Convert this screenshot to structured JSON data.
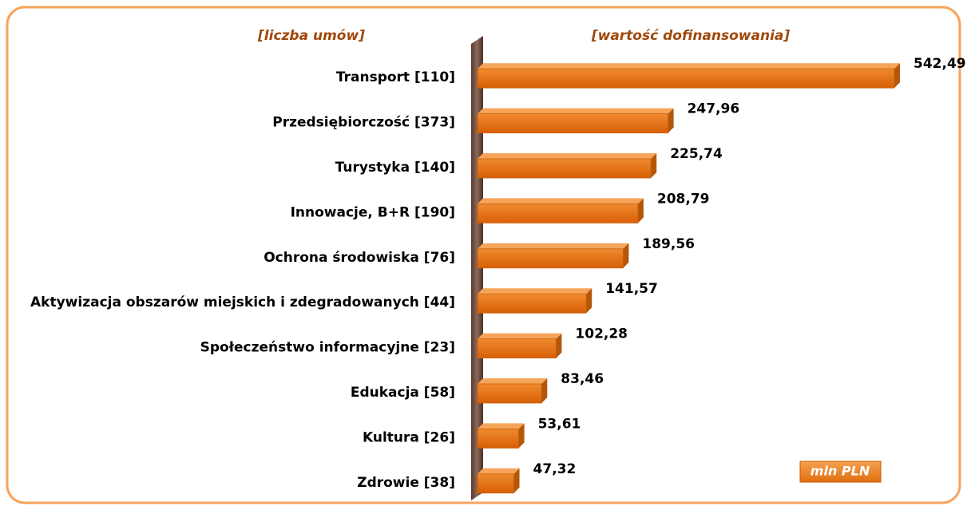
{
  "chart_data": {
    "type": "bar",
    "orientation": "horizontal",
    "left_header": "[liczba umów]",
    "right_header": "[wartość dofinansowania]",
    "unit_label": "mln PLN",
    "color": "#e46c0a",
    "categories": [
      "Transport [110]",
      "Przedsiębiorczość [373]",
      "Turystyka [140]",
      "Innowacje, B+R [190]",
      "Ochrona środowiska [76]",
      "Aktywizacja obszarów miejskich i zdegradowanych [44]",
      "Społeczeństwo informacyjne [23]",
      "Edukacja [58]",
      "Kultura [26]",
      "Zdrowie [38]"
    ],
    "values": [
      542.49,
      247.96,
      225.74,
      208.79,
      189.56,
      141.57,
      102.28,
      83.46,
      53.61,
      47.32
    ],
    "value_labels": [
      "542,49",
      "247,96",
      "225,74",
      "208,79",
      "189,56",
      "141,57",
      "102,28",
      "83,46",
      "53,61",
      "47,32"
    ]
  }
}
